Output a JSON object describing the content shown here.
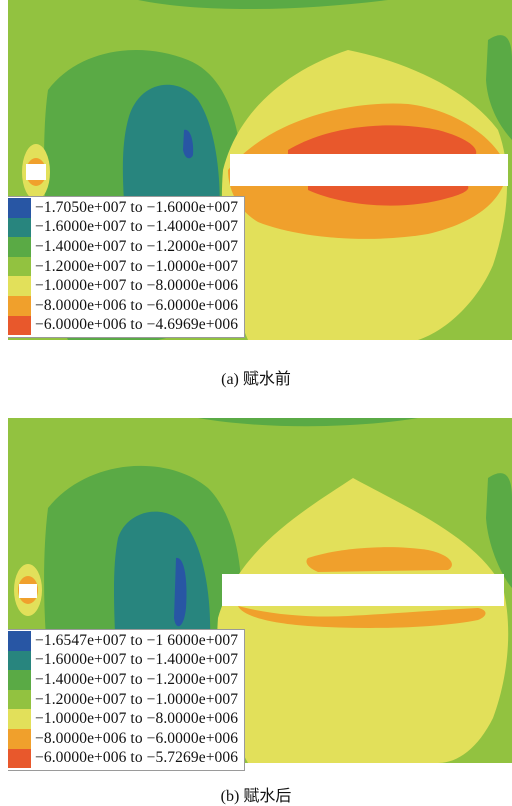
{
  "colors": {
    "band1": "#2856a4",
    "band2": "#28857e",
    "band3": "#5aaa45",
    "band4": "#92c240",
    "band5": "#e2e05a",
    "band6": "#f0a02c",
    "band7": "#e8582c",
    "cavity": "#ffffff"
  },
  "chart_data": [
    {
      "type": "heatmap",
      "title": "(a) 赋水前",
      "legend_placement": "bottom-left",
      "legend": [
        {
          "label": "−1.7050e+007 to −1.6000e+007",
          "from": -17050000,
          "to": -16000000,
          "color": "#2856a4"
        },
        {
          "label": "−1.6000e+007 to −1.4000e+007",
          "from": -16000000,
          "to": -14000000,
          "color": "#28857e"
        },
        {
          "label": "−1.4000e+007 to −1.2000e+007",
          "from": -14000000,
          "to": -12000000,
          "color": "#5aaa45"
        },
        {
          "label": "−1.2000e+007 to −1.0000e+007",
          "from": -12000000,
          "to": -10000000,
          "color": "#92c240"
        },
        {
          "label": "−1.0000e+007 to −8.0000e+006",
          "from": -10000000,
          "to": -8000000,
          "color": "#e2e05a"
        },
        {
          "label": "−8.0000e+006 to −6.0000e+006",
          "from": -8000000,
          "to": -6000000,
          "color": "#f0a02c"
        },
        {
          "label": "−6.0000e+006 to −4.6969e+006",
          "from": -6000000,
          "to": -4696900,
          "color": "#e8582c"
        }
      ]
    },
    {
      "type": "heatmap",
      "title": "(b) 赋水后",
      "legend_placement": "bottom-left",
      "legend": [
        {
          "label": "−1.6547e+007 to −1 6000e+007",
          "from": -16547000,
          "to": -16000000,
          "color": "#2856a4"
        },
        {
          "label": "−1.6000e+007 to −1.4000e+007",
          "from": -16000000,
          "to": -14000000,
          "color": "#28857e"
        },
        {
          "label": "−1.4000e+007 to −1.2000e+007",
          "from": -14000000,
          "to": -12000000,
          "color": "#5aaa45"
        },
        {
          "label": "−1.2000e+007 to −1.0000e+007",
          "from": -12000000,
          "to": -10000000,
          "color": "#92c240"
        },
        {
          "label": "−1.0000e+007 to −8.0000e+006",
          "from": -10000000,
          "to": -8000000,
          "color": "#e2e05a"
        },
        {
          "label": "−8.0000e+006 to −6.0000e+006",
          "from": -8000000,
          "to": -6000000,
          "color": "#f0a02c"
        },
        {
          "label": "−6.0000e+006 to −5.7269e+006",
          "from": -6000000,
          "to": -5726900,
          "color": "#e8582c"
        }
      ]
    }
  ]
}
